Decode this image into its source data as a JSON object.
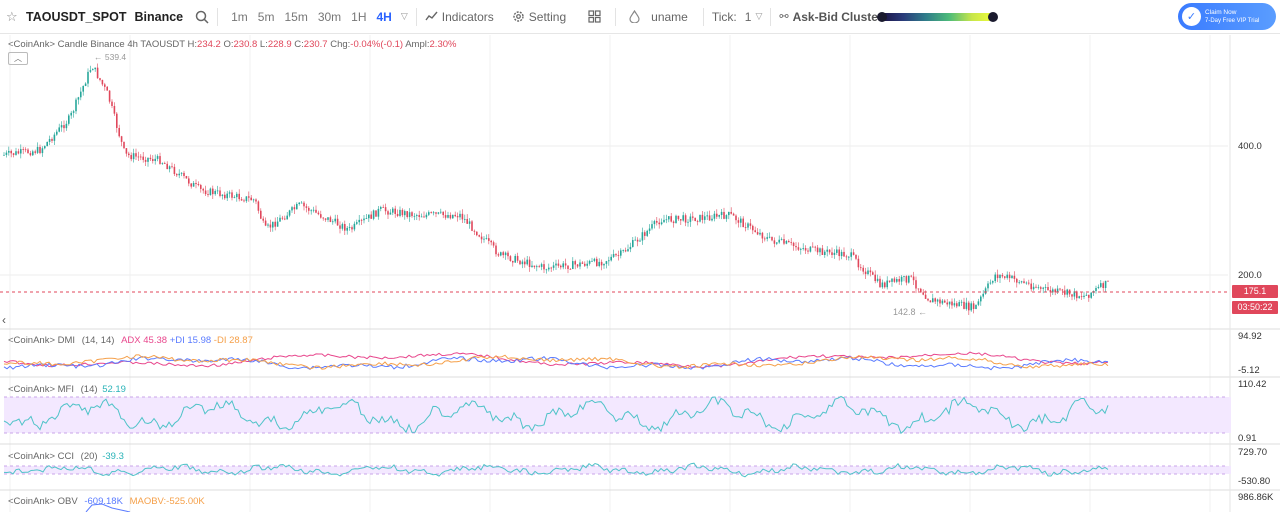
{
  "toolbar": {
    "symbol": "TAOUSDT_SPOT",
    "exchange": "Binance",
    "timeframes": [
      "1m",
      "5m",
      "15m",
      "30m",
      "1H",
      "4H"
    ],
    "active_timeframe": "4H",
    "indicators_label": "Indicators",
    "setting_label": "Setting",
    "uname_label": "uname",
    "tick_label": "Tick:",
    "tick_value": "1",
    "cluster_label": "Ask-Bid Cluster",
    "promo_line1": "Claim Now",
    "promo_line2": "7-Day Free VIP Trial"
  },
  "main_legend": {
    "prefix": "<CoinAnk> Candle  Binance 4h TAOUSDT",
    "h_label": "H:",
    "h_value": "234.2",
    "o_label": "O:",
    "o_value": "230.8",
    "l_label": "L:",
    "l_value": "228.9",
    "c_label": "C:",
    "c_value": "230.7",
    "chg_label": "Chg:",
    "chg_value": "-0.04%(-0.1)",
    "ampl_label": "Ampl:",
    "ampl_value": "2.30%"
  },
  "price_axis": {
    "levels": [
      "400.0",
      "200.0"
    ],
    "current_price": "175.1",
    "countdown": "03:50:22",
    "max_marker": "← 539.4",
    "min_marker": "142.8 ←"
  },
  "dmi": {
    "label": "<CoinAnk> DMI",
    "params": "(14, 14)",
    "adx": "ADX 45.38",
    "pdi": "+DI 15.98",
    "mdi": "-DI 28.87",
    "axis_top": "94.92",
    "axis_bottom": "-5.12"
  },
  "mfi": {
    "label": "<CoinAnk> MFI",
    "params": "(14)",
    "value": "52.19",
    "axis_top": "110.42",
    "axis_bottom": "0.91"
  },
  "cci": {
    "label": "<CoinAnk> CCI",
    "params": "(20)",
    "value": "-39.3",
    "axis_top": "729.70",
    "axis_bottom": "-530.80"
  },
  "obv": {
    "label": "<CoinAnk> OBV",
    "value": "-609.18K",
    "maobv": "MAOBV:-525.00K",
    "axis_top": "986.86K"
  },
  "colors": {
    "up": "#26a69a",
    "down": "#e0475b",
    "adx": "#e8468c",
    "pdi": "#5a7bff",
    "mdi": "#f5a04a",
    "mfi": "#4fc3c8",
    "obv": "#5a7bff"
  }
}
